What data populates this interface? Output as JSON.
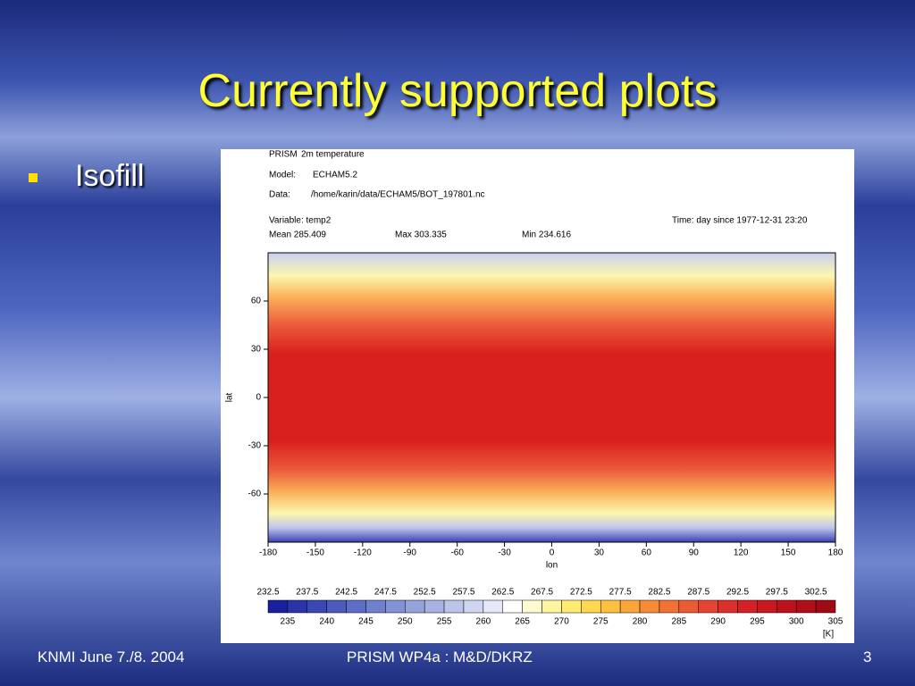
{
  "slide": {
    "title": "Currently supported plots",
    "bullets": [
      "Isofill"
    ]
  },
  "figure": {
    "header": {
      "project": "PRISM",
      "field": "2m temperature",
      "model_label": "Model:",
      "model": "ECHAM5.2",
      "data_label": "Data:",
      "data": "/home/karin/data/ECHAM5/BOT_197801.nc",
      "variable": "Variable:  temp2",
      "time": "Time:   day since 1977-12-31 23:20",
      "mean": "Mean 285.409",
      "max": "Max 303.335",
      "min": "Min 234.616"
    },
    "xlabel": "lon",
    "ylabel": "lat",
    "xlim": [
      -180,
      180
    ],
    "ylim": [
      -90,
      90
    ],
    "xticks": [
      -180,
      -150,
      -120,
      -90,
      -60,
      -30,
      0,
      30,
      60,
      90,
      120,
      150,
      180
    ],
    "yticks": [
      60,
      30,
      0,
      -30,
      -60
    ],
    "colorbar": {
      "top_labels": [
        232.5,
        237.5,
        242.5,
        247.5,
        252.5,
        257.5,
        262.5,
        267.5,
        272.5,
        277.5,
        282.5,
        287.5,
        292.5,
        297.5,
        302.5
      ],
      "bottom_labels": [
        235,
        240,
        245,
        250,
        255,
        260,
        265,
        270,
        275,
        280,
        285,
        290,
        295,
        300,
        305
      ],
      "unit": "[K]",
      "colors": [
        "#1a1f9e",
        "#2a34a8",
        "#3a48b2",
        "#4c5bbb",
        "#5e6ec4",
        "#7080cc",
        "#8292d4",
        "#95a3dc",
        "#a8b3e3",
        "#bcc4ea",
        "#d0d6f1",
        "#e4e8f8",
        "#ffffff",
        "#fffbd0",
        "#fff5a0",
        "#ffec70",
        "#ffd850",
        "#ffc040",
        "#fca63a",
        "#f88c36",
        "#f27236",
        "#ec5a36",
        "#e44432",
        "#dc302c",
        "#d42026",
        "#c81820",
        "#bc121c",
        "#b00e18",
        "#a00a14"
      ]
    }
  },
  "footer": {
    "left": "KNMI June 7./8. 2004",
    "center": "PRISM WP4a :  M&D/DKRZ",
    "page": "3"
  }
}
